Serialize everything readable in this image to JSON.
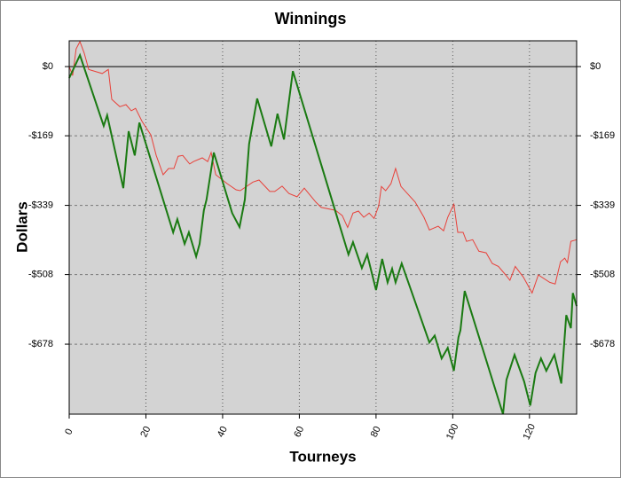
{
  "chart_data": {
    "type": "line",
    "title": "Winnings",
    "x_label": "Tourneys",
    "y_label": "Dollars",
    "xlim": [
      0,
      132.3
    ],
    "ylim": [
      -849,
      63
    ],
    "xticks": [
      0,
      20,
      40,
      60,
      80,
      100,
      120
    ],
    "yticks": [
      {
        "value": 0,
        "label": "$0"
      },
      {
        "value": -169,
        "label": "-$169"
      },
      {
        "value": -339,
        "label": "-$339"
      },
      {
        "value": -508,
        "label": "-$508"
      },
      {
        "value": -678,
        "label": "-$678"
      }
    ],
    "grid": true,
    "series": [
      {
        "color": "#e8413a",
        "x": [
          0,
          0.9,
          1.8,
          2.8,
          3.9,
          5.1,
          8.6,
          10.2,
          11.1,
          13.2,
          14.8,
          16.2,
          17.3,
          19.0,
          21.3,
          22.7,
          24.5,
          25.9,
          27.3,
          28.4,
          29.6,
          31.4,
          32.4,
          34.7,
          36.1,
          37.0,
          38.2,
          41.2,
          43.5,
          44.6,
          47.9,
          49.5,
          52.3,
          53.6,
          55.5,
          57.3,
          59.4,
          61.3,
          64.3,
          65.7,
          69.4,
          71.2,
          72.6,
          74.0,
          75.4,
          76.8,
          78.2,
          79.5,
          80.7,
          81.4,
          82.5,
          83.9,
          85.1,
          86.5,
          90.2,
          92.5,
          93.9,
          96.2,
          97.6,
          98.7,
          100.3,
          101.3,
          102.7,
          103.6,
          105.2,
          106.8,
          108.7,
          110.3,
          111.9,
          113.8,
          114.9,
          116.3,
          118.4,
          120.7,
          122.3,
          125.3,
          126.7,
          128.1,
          129.2,
          129.9,
          130.8,
          132.3
        ],
        "values": [
          0,
          -22,
          43,
          61,
          33,
          -7,
          -17,
          -7,
          -80,
          -98,
          -93,
          -108,
          -102,
          -134,
          -167,
          -217,
          -264,
          -249,
          -249,
          -219,
          -217,
          -238,
          -232,
          -223,
          -232,
          -210,
          -264,
          -286,
          -301,
          -303,
          -282,
          -277,
          -305,
          -305,
          -292,
          -310,
          -318,
          -297,
          -331,
          -344,
          -351,
          -364,
          -393,
          -358,
          -353,
          -368,
          -358,
          -371,
          -340,
          -293,
          -303,
          -286,
          -249,
          -293,
          -331,
          -368,
          -399,
          -390,
          -401,
          -368,
          -336,
          -405,
          -405,
          -427,
          -423,
          -451,
          -455,
          -481,
          -488,
          -509,
          -522,
          -488,
          -514,
          -553,
          -509,
          -527,
          -531,
          -477,
          -468,
          -479,
          -427,
          -423
        ]
      },
      {
        "color": "#1a7a12",
        "x": [
          0,
          2.8,
          9.0,
          9.9,
          14.1,
          15.5,
          17.1,
          18.3,
          27.1,
          28.2,
          30.1,
          31.2,
          33.1,
          34.0,
          35.1,
          35.8,
          37.7,
          42.5,
          44.4,
          45.8,
          46.9,
          49.0,
          52.7,
          54.3,
          56.0,
          58.3,
          72.8,
          74.0,
          76.3,
          77.7,
          80.0,
          81.6,
          83.0,
          84.2,
          85.1,
          86.7,
          93.9,
          95.3,
          97.1,
          98.7,
          100.3,
          101.5,
          102.0,
          103.1,
          113.1,
          114.0,
          116.1,
          118.6,
          120.2,
          121.6,
          123.0,
          124.4,
          126.5,
          128.3,
          129.6,
          130.8,
          131.3,
          132.3
        ],
        "values": [
          -28,
          28,
          -145,
          -119,
          -297,
          -158,
          -217,
          -137,
          -405,
          -373,
          -433,
          -405,
          -464,
          -433,
          -351,
          -325,
          -210,
          -358,
          -392,
          -325,
          -189,
          -78,
          -195,
          -115,
          -178,
          -11,
          -459,
          -429,
          -492,
          -459,
          -546,
          -470,
          -527,
          -494,
          -527,
          -481,
          -674,
          -657,
          -713,
          -687,
          -743,
          -661,
          -644,
          -548,
          -849,
          -765,
          -704,
          -769,
          -828,
          -748,
          -713,
          -743,
          -704,
          -774,
          -607,
          -639,
          -553,
          -585
        ]
      }
    ]
  }
}
